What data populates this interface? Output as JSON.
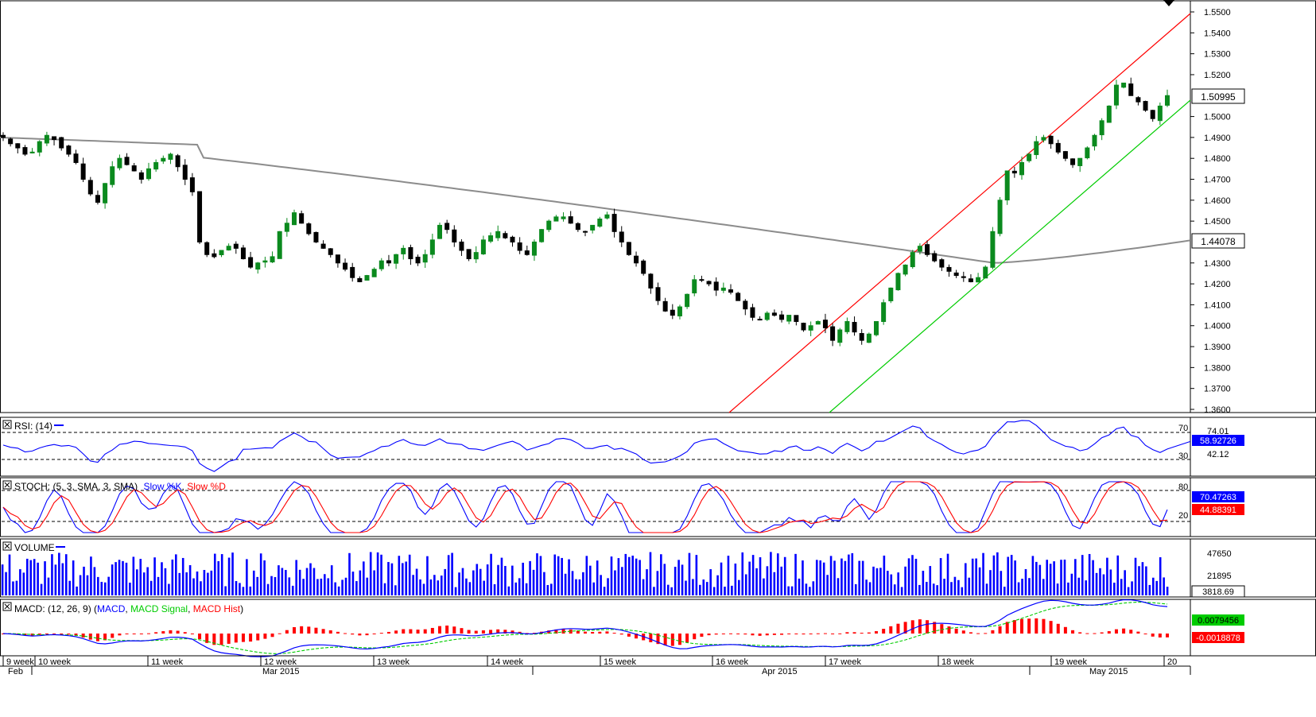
{
  "colors": {
    "bull": "#0b8a1e",
    "bear": "#000000",
    "ma_line": "#8c8c8c",
    "channel_upper": "#ff0000",
    "channel_lower": "#00cc00",
    "rsi": "#0000ff",
    "stoch_k": "#0000ff",
    "stoch_d": "#ff0000",
    "volume": "#0000ff",
    "macd": "#0000ff",
    "signal": "#00cc00",
    "hist": "#ff0000"
  },
  "chart_data": [
    {
      "type": "candlestick",
      "name": "price",
      "y_axis": {
        "min": 1.36,
        "max": 1.55,
        "ticks": [
          "1.5500",
          "1.5400",
          "1.5300",
          "1.5200",
          "1.5000",
          "1.4900",
          "1.4800",
          "1.4700",
          "1.4600",
          "1.4500",
          "1.4300",
          "1.4200",
          "1.4100",
          "1.4000",
          "1.3900",
          "1.3800",
          "1.3700",
          "1.3600"
        ]
      },
      "last_price_label": "1.50995",
      "ma_label": "1.44078",
      "ohlc_anchor_closes": [
        1.49,
        1.487,
        1.485,
        1.482,
        1.483,
        1.488,
        1.491,
        1.489,
        1.485,
        1.482,
        1.478,
        1.47,
        1.463,
        1.459,
        1.468,
        1.476,
        1.48,
        1.477,
        1.474,
        1.47,
        1.475,
        1.478,
        1.48,
        1.482,
        1.476,
        1.47,
        1.464,
        1.44,
        1.434,
        1.433,
        1.436,
        1.438,
        1.437,
        1.432,
        1.428,
        1.43,
        1.431,
        1.433,
        1.445,
        1.449,
        1.454,
        1.449,
        1.444,
        1.44,
        1.437,
        1.434,
        1.43,
        1.427,
        1.423,
        1.421,
        1.424,
        1.427,
        1.431,
        1.43,
        1.434,
        1.437,
        1.432,
        1.43,
        1.434,
        1.441,
        1.448,
        1.446,
        1.44,
        1.436,
        1.432,
        1.435,
        1.441,
        1.443,
        1.445,
        1.442,
        1.44,
        1.436,
        1.434,
        1.44,
        1.446,
        1.45,
        1.452,
        1.452,
        1.449,
        1.446,
        1.445,
        1.448,
        1.451,
        1.453,
        1.445,
        1.44,
        1.434,
        1.43,
        1.425,
        1.418,
        1.412,
        1.407,
        1.405,
        1.409,
        1.415,
        1.422,
        1.422,
        1.42,
        1.417,
        1.418,
        1.416,
        1.412,
        1.408,
        1.404,
        1.403,
        1.406,
        1.405,
        1.403,
        1.405,
        1.402,
        1.398,
        1.4,
        1.402,
        1.399,
        1.393,
        1.398,
        1.402,
        1.397,
        1.393,
        1.396,
        1.402,
        1.411,
        1.418,
        1.425,
        1.429,
        1.435,
        1.438,
        1.434,
        1.431,
        1.428,
        1.426,
        1.424,
        1.423,
        1.421,
        1.423,
        1.428,
        1.445,
        1.46,
        1.474,
        1.473,
        1.478,
        1.482,
        1.488,
        1.49,
        1.487,
        1.483,
        1.48,
        1.477,
        1.48,
        1.485,
        1.491,
        1.498,
        1.505,
        1.515,
        1.516,
        1.51,
        1.507,
        1.503,
        1.499,
        1.505,
        1.51
      ]
    },
    {
      "type": "line",
      "name": "RSI (14)",
      "label": "RSI: (14)",
      "y_axis": {
        "min": 0,
        "max": 100,
        "ticks": [
          "70",
          "30"
        ],
        "extra_labels": [
          "74.01",
          "42.12"
        ]
      },
      "last_value": "58.92726"
    },
    {
      "type": "line",
      "name": "STOCH",
      "label_prefix": "STOCH: (5, 3, SMA, 3, SMA)",
      "label_k": "Slow %K",
      "label_d": "Slow %D",
      "y_axis": {
        "min": 0,
        "max": 100,
        "ticks": [
          "80",
          "20"
        ]
      },
      "last_k": "70.47263",
      "last_d": "44.88391"
    },
    {
      "type": "bar",
      "name": "VOLUME",
      "label": "VOLUME",
      "y_axis": {
        "ticks": [
          "47650",
          "21895"
        ]
      },
      "last_value": "3818.69"
    },
    {
      "type": "line",
      "name": "MACD",
      "label_prefix": "MACD: (12, 26, 9)",
      "label_macd": "MACD",
      "label_signal": "MACD Signal",
      "label_hist": "MACD Hist",
      "last_macd": "0.0079456",
      "last_hist": "-0.0018878"
    }
  ],
  "x_axis": {
    "weeks": [
      "9 week",
      "10 week",
      "11 week",
      "12 week",
      "13 week",
      "14 week",
      "15 week",
      "16 week",
      "17 week",
      "18 week",
      "19 week",
      "20"
    ],
    "months": [
      "Feb",
      "Mar 2015",
      "Apr 2015",
      "May 2015"
    ]
  }
}
